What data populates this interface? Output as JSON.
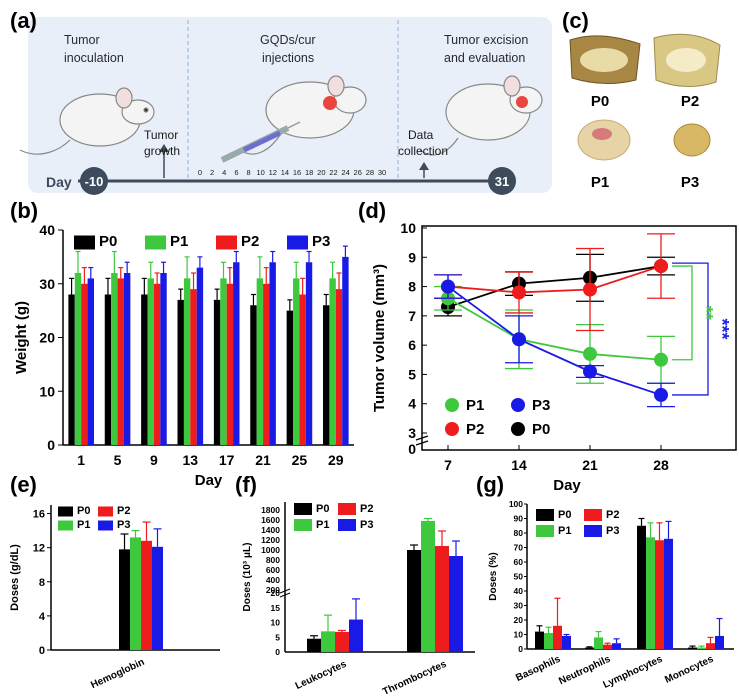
{
  "panel_labels": {
    "a": "(a)",
    "b": "(b)",
    "c": "(c)",
    "d": "(d)",
    "e": "(e)",
    "f": "(f)",
    "g": "(g)"
  },
  "timeline": {
    "stage1": [
      "Tumor",
      "inoculation"
    ],
    "stage2": [
      "GQDs/cur",
      "injections"
    ],
    "stage3": [
      "Tumor excision",
      "and evaluation"
    ],
    "arrow1": [
      "Tumor",
      "growth"
    ],
    "arrow2": [
      "Data",
      "collection"
    ],
    "day_label": "Day",
    "day_start": "-10",
    "day_end": "31",
    "ticks": [
      "0",
      "2",
      "4",
      "6",
      "8",
      "10",
      "12",
      "14",
      "16",
      "18",
      "20",
      "22",
      "24",
      "26",
      "28",
      "30"
    ]
  },
  "photos": {
    "labels": [
      "P0",
      "P2",
      "P1",
      "P3"
    ]
  },
  "colors": {
    "P0": "#000000",
    "P1": "#3ec83e",
    "P2": "#ee1c1c",
    "P3": "#1a1ae6",
    "timeline_bg": "#e6eef7",
    "day_bar": "#3d4b5c"
  },
  "chart_data": [
    {
      "id": "b",
      "type": "bar",
      "xlabel": "Day",
      "ylabel": "Weight (g)",
      "categories": [
        "1",
        "5",
        "9",
        "13",
        "17",
        "21",
        "25",
        "29"
      ],
      "ylim": [
        0,
        40
      ],
      "yticks": [
        0,
        10,
        20,
        30,
        40
      ],
      "legend": "top",
      "series": [
        {
          "name": "P0",
          "values": [
            28,
            28,
            28,
            27,
            27,
            26,
            25,
            26
          ],
          "errors": [
            3,
            3,
            3,
            2,
            2,
            2,
            2,
            2
          ]
        },
        {
          "name": "P1",
          "values": [
            32,
            32,
            31,
            31,
            31,
            31,
            31,
            31
          ],
          "errors": [
            4,
            4,
            3,
            4,
            3,
            4,
            3,
            3
          ]
        },
        {
          "name": "P2",
          "values": [
            30,
            31,
            30,
            29,
            30,
            30,
            28,
            29
          ],
          "errors": [
            3,
            2,
            2,
            3,
            3,
            3,
            3,
            3
          ]
        },
        {
          "name": "P3",
          "values": [
            31,
            32,
            32,
            33,
            34,
            34,
            34,
            35
          ],
          "errors": [
            2,
            2,
            2,
            2,
            2,
            2,
            2,
            2
          ]
        }
      ]
    },
    {
      "id": "d",
      "type": "line",
      "xlabel": "Day",
      "ylabel": "Tumor volume (mm³)",
      "x": [
        7,
        14,
        21,
        28
      ],
      "ylim": [
        0,
        10
      ],
      "yticks": [
        3,
        4,
        5,
        6,
        7,
        8,
        9,
        10
      ],
      "ybreak": true,
      "legend": "bottom-left",
      "series": [
        {
          "name": "P0",
          "values": [
            7.3,
            8.1,
            8.3,
            8.7
          ],
          "errors": [
            0.3,
            0.4,
            0.8,
            0.3
          ]
        },
        {
          "name": "P1",
          "values": [
            7.6,
            6.2,
            5.7,
            5.5
          ],
          "errors": [
            0.4,
            1.0,
            1.0,
            0.8
          ]
        },
        {
          "name": "P2",
          "values": [
            8.0,
            7.8,
            7.9,
            8.7
          ],
          "errors": [
            0.4,
            0.7,
            1.4,
            1.1
          ]
        },
        {
          "name": "P3",
          "values": [
            8.0,
            6.2,
            5.1,
            4.3
          ],
          "errors": [
            0.4,
            0.8,
            0.2,
            0.4
          ]
        }
      ],
      "annotations": [
        "**",
        "***"
      ]
    },
    {
      "id": "e",
      "type": "bar",
      "ylabel": "Doses (g/dL)",
      "categories": [
        "Hemoglobin"
      ],
      "ylim": [
        0,
        17
      ],
      "yticks": [
        0,
        4,
        8,
        12,
        16
      ],
      "legend": "top-left",
      "series": [
        {
          "name": "P0",
          "values": [
            11.8
          ],
          "errors": [
            1.8
          ]
        },
        {
          "name": "P1",
          "values": [
            13.2
          ],
          "errors": [
            0.8
          ]
        },
        {
          "name": "P2",
          "values": [
            12.8
          ],
          "errors": [
            2.2
          ]
        },
        {
          "name": "P3",
          "values": [
            12.1
          ],
          "errors": [
            2.1
          ]
        }
      ]
    },
    {
      "id": "f",
      "type": "bar",
      "ylabel": "Doses (10³ μL)",
      "categories": [
        "Leukocytes",
        "Thrombocytes"
      ],
      "ylim": [
        0,
        1800
      ],
      "ybreak": [
        20,
        200
      ],
      "yticks_low": [
        0,
        5,
        10,
        15,
        20
      ],
      "yticks_high": [
        200,
        400,
        600,
        800,
        1000,
        1200,
        1400,
        1600,
        1800
      ],
      "legend": "top-left",
      "series": [
        {
          "name": "P0",
          "values": [
            4.5,
            1000
          ],
          "errors": [
            1.0,
            100
          ]
        },
        {
          "name": "P1",
          "values": [
            7.0,
            1580
          ],
          "errors": [
            5.5,
            50
          ]
        },
        {
          "name": "P2",
          "values": [
            6.8,
            1080
          ],
          "errors": [
            0.5,
            300
          ]
        },
        {
          "name": "P3",
          "values": [
            11.0,
            880
          ],
          "errors": [
            7.0,
            300
          ]
        }
      ]
    },
    {
      "id": "g",
      "type": "bar",
      "ylabel": "Doses (%)",
      "categories": [
        "Basophils",
        "Neutrophils",
        "Lymphocytes",
        "Monocytes"
      ],
      "ylim": [
        0,
        100
      ],
      "yticks": [
        0,
        10,
        20,
        30,
        40,
        50,
        60,
        70,
        80,
        90,
        100
      ],
      "legend": "top-left",
      "series": [
        {
          "name": "P0",
          "values": [
            12,
            1,
            85,
            1
          ],
          "errors": [
            4,
            0.5,
            5,
            1
          ]
        },
        {
          "name": "P1",
          "values": [
            11,
            8,
            77,
            1
          ],
          "errors": [
            4,
            4,
            10,
            1
          ]
        },
        {
          "name": "P2",
          "values": [
            16,
            3,
            75,
            4
          ],
          "errors": [
            19,
            1,
            12,
            4
          ]
        },
        {
          "name": "P3",
          "values": [
            9,
            4,
            76,
            9
          ],
          "errors": [
            1,
            3,
            12,
            12
          ]
        }
      ]
    }
  ]
}
